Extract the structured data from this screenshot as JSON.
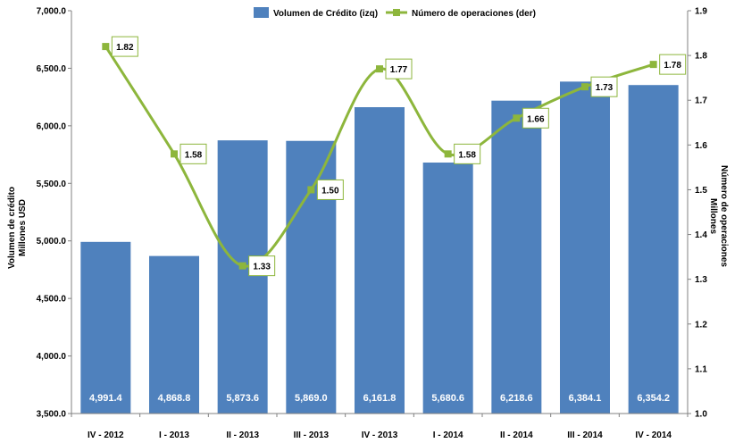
{
  "chart_data": {
    "type": "bar+line",
    "categories": [
      "IV - 2012",
      "I - 2013",
      "II - 2013",
      "III - 2013",
      "IV - 2013",
      "I - 2014",
      "II - 2014",
      "III - 2014",
      "IV - 2014"
    ],
    "series": [
      {
        "name": "Volumen de Crédito (izq)",
        "type": "bar",
        "axis": "left",
        "values": [
          4991.4,
          4868.8,
          5873.6,
          5869.0,
          6161.8,
          5680.6,
          6218.6,
          6384.1,
          6354.2
        ],
        "labels": [
          "4,991.4",
          "4,868.8",
          "5,873.6",
          "5,869.0",
          "6,161.8",
          "5,680.6",
          "6,218.6",
          "6,384.1",
          "6,354.2"
        ],
        "color": "#4f81bd"
      },
      {
        "name": "Número de operaciones (der)",
        "type": "line",
        "axis": "right",
        "values": [
          1.82,
          1.58,
          1.33,
          1.5,
          1.77,
          1.58,
          1.66,
          1.73,
          1.78
        ],
        "labels": [
          "1.82",
          "1.58",
          "1.33",
          "1.50",
          "1.77",
          "1.58",
          "1.66",
          "1.73",
          "1.78"
        ],
        "color": "#8db63c"
      }
    ],
    "y_left": {
      "label_line1": "Volumen de crédito",
      "label_line2": "Millones USD",
      "min": 3500,
      "max": 7000,
      "ticks": [
        3500,
        4000,
        4500,
        5000,
        5500,
        6000,
        6500,
        7000
      ],
      "tick_labels": [
        "3,500.0",
        "4,000.0",
        "4,500.0",
        "5,000.0",
        "5,500.0",
        "6,000.0",
        "6,500.0",
        "7,000.0"
      ]
    },
    "y_right": {
      "label_line1": "Número de operaciones",
      "label_line2": "Millones",
      "min": 1.0,
      "max": 1.9,
      "ticks": [
        1.0,
        1.1,
        1.2,
        1.3,
        1.4,
        1.5,
        1.6,
        1.7,
        1.8,
        1.9
      ],
      "tick_labels": [
        "1.0",
        "1.1",
        "1.2",
        "1.3",
        "1.4",
        "1.5",
        "1.6",
        "1.7",
        "1.8",
        "1.9"
      ]
    },
    "legend_position": "top-center",
    "grid": false
  }
}
